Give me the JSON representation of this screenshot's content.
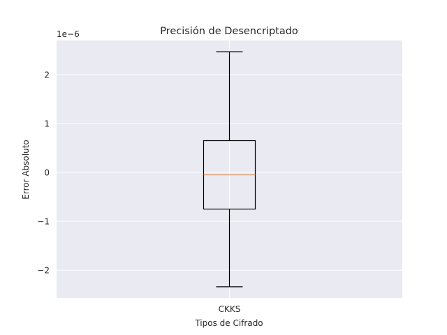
{
  "chart_data": {
    "type": "box",
    "title": "Precisión de Desencriptado",
    "xlabel": "Tipos de Cifrado",
    "ylabel": "Error Absoluto",
    "y_offset_label": "1e−6",
    "y_scale": 1e-06,
    "ylim": [
      -2.57,
      2.7
    ],
    "yticks": [
      -2,
      -1,
      0,
      1,
      2
    ],
    "ytick_labels": [
      "−2",
      "−1",
      "0",
      "1",
      "2"
    ],
    "grid": true,
    "categories": [
      "CKKS"
    ],
    "boxes": [
      {
        "category": "CKKS",
        "whisker_low": -2.34,
        "q1": -0.75,
        "median": -0.05,
        "q3": 0.65,
        "whisker_high": 2.47
      }
    ],
    "colors": {
      "background": "#eaeaf2",
      "grid": "#ffffff",
      "box": "#000000",
      "median": "#ff7f0e"
    }
  }
}
